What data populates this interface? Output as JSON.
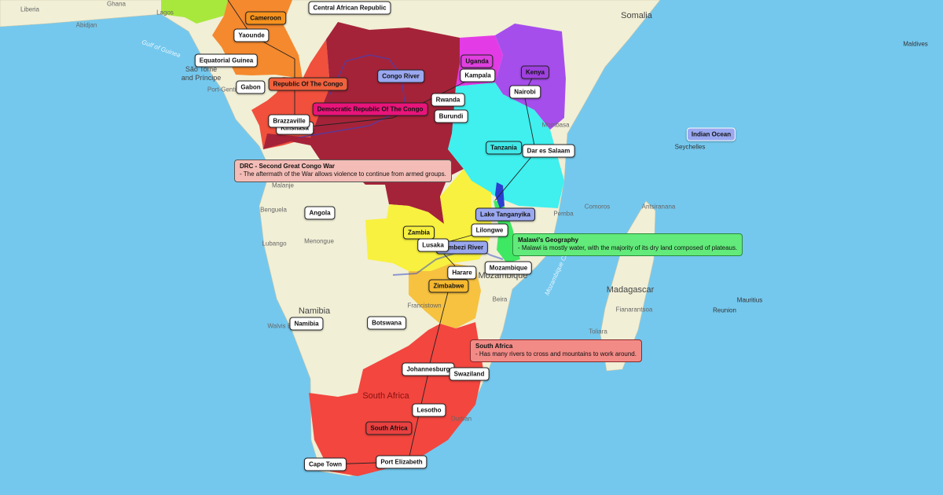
{
  "colors": {
    "ocean": "#74c8ee",
    "land": "#f1efd6",
    "nigeria": "#a8e83c",
    "cameroon": "#f5892e",
    "roc": "#f0503c",
    "drc": "#a52339",
    "uganda": "#e33ce6",
    "kenya": "#a64eec",
    "tanzania": "#3ff0ee",
    "zambia": "#f8f13f",
    "malawi": "#3fe863",
    "zimbabwe": "#f6c23f",
    "south_africa": "#f2463f",
    "river": "#2a3fd0"
  },
  "base_labels": [
    {
      "text": "Liberia"
    },
    {
      "text": "Ghana"
    },
    {
      "text": "Abidjan"
    },
    {
      "text": "Lagos"
    },
    {
      "text": "Gulf of Guinea"
    },
    {
      "text": "São Tomé"
    },
    {
      "text": "and Príncipe"
    },
    {
      "text": "Port-Gentil"
    },
    {
      "text": "Somalia"
    },
    {
      "text": "Maldives"
    },
    {
      "text": "Seychelles"
    },
    {
      "text": "Comoros"
    },
    {
      "text": "Antsiranana"
    },
    {
      "text": "Pemba"
    },
    {
      "text": "Madagascar"
    },
    {
      "text": "Fianarantsoa"
    },
    {
      "text": "Toliara"
    },
    {
      "text": "Mauritius"
    },
    {
      "text": "Reunion"
    },
    {
      "text": "Mozambique"
    },
    {
      "text": "Beira"
    },
    {
      "text": "Francistown"
    },
    {
      "text": "Namibia"
    },
    {
      "text": "Walvis Bay"
    },
    {
      "text": "South Africa"
    },
    {
      "text": "Malanje"
    },
    {
      "text": "Benguela"
    },
    {
      "text": "Lubango"
    },
    {
      "text": "Menongue"
    },
    {
      "text": "Mombasa"
    },
    {
      "text": "Durban"
    },
    {
      "text": "Mozambique Channel"
    }
  ],
  "markers": [
    {
      "text": "Cameroon",
      "type": "country"
    },
    {
      "text": "Yaounde",
      "type": "city"
    },
    {
      "text": "Central African Republic",
      "type": "city"
    },
    {
      "text": "Equatorial Guinea",
      "type": "city"
    },
    {
      "text": "Gabon",
      "type": "city"
    },
    {
      "text": "Republic Of The Congo",
      "type": "country"
    },
    {
      "text": "Congo River",
      "type": "water"
    },
    {
      "text": "Democratic Republic Of The Congo",
      "type": "country"
    },
    {
      "text": "Uganda",
      "type": "country"
    },
    {
      "text": "Kampala",
      "type": "city"
    },
    {
      "text": "Kenya",
      "type": "country"
    },
    {
      "text": "Nairobi",
      "type": "city"
    },
    {
      "text": "Rwanda",
      "type": "city"
    },
    {
      "text": "Burundi",
      "type": "city"
    },
    {
      "text": "Kinshasa",
      "type": "city"
    },
    {
      "text": "Brazzaville",
      "type": "city"
    },
    {
      "text": "Tanzania",
      "type": "country"
    },
    {
      "text": "Dar es Salaam",
      "type": "city"
    },
    {
      "text": "Indian Ocean",
      "type": "water"
    },
    {
      "text": "Angola",
      "type": "city"
    },
    {
      "text": "Lake Tanganyika",
      "type": "water"
    },
    {
      "text": "Lilongwe",
      "type": "city"
    },
    {
      "text": "Zambia",
      "type": "country"
    },
    {
      "text": "Zambezi River",
      "type": "water"
    },
    {
      "text": "Lusaka",
      "type": "city"
    },
    {
      "text": "Mozambique",
      "type": "city"
    },
    {
      "text": "Harare",
      "type": "city"
    },
    {
      "text": "Zimbabwe",
      "type": "country"
    },
    {
      "text": "Namibia",
      "type": "city"
    },
    {
      "text": "Botswana",
      "type": "city"
    },
    {
      "text": "Johannesburg",
      "type": "city"
    },
    {
      "text": "Swaziland",
      "type": "city"
    },
    {
      "text": "Lesotho",
      "type": "city"
    },
    {
      "text": "South Africa",
      "type": "country"
    },
    {
      "text": "Cape Town",
      "type": "city"
    },
    {
      "text": "Port Elizabeth",
      "type": "city"
    }
  ],
  "notes": {
    "drc": {
      "title": "DRC - Second Great Congo War",
      "body": "- The aftermath of the War allows violence to continue from armed groups."
    },
    "malawi": {
      "title": "Malawi's Geography",
      "body": "- Malawi is mostly water, with the majority of its dry land composed of plateaus."
    },
    "south_africa": {
      "title": "South Africa",
      "body": "- Has many rivers to cross and mountains to work around."
    }
  }
}
